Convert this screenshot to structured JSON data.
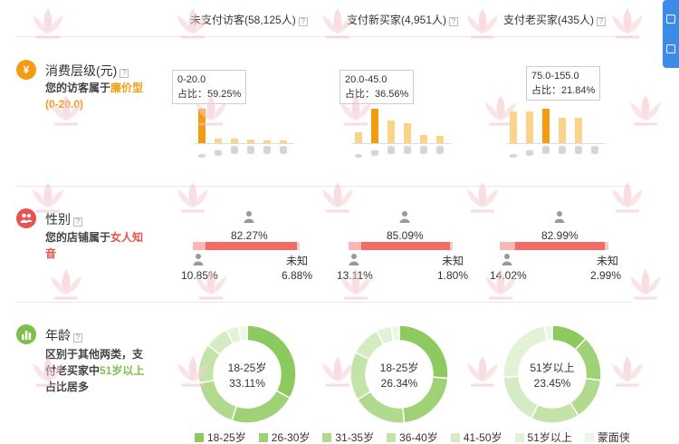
{
  "columns": [
    {
      "label": "未支付访客(58,125人)"
    },
    {
      "label": "支付新买家(4,951人)"
    },
    {
      "label": "支付老买家(435人)"
    }
  ],
  "help_mark": "?",
  "price": {
    "icon": "¥",
    "title": "消费层级(元)",
    "desc_prefix": "您的访客属于",
    "desc_highlight": "廉价型",
    "desc_range": "(0-20.0)",
    "tips": [
      {
        "range": "0-20.0",
        "share": "占比：59.25%"
      },
      {
        "range": "20.0-45.0",
        "share": "占比：36.56%"
      },
      {
        "range": "75.0-155.0",
        "share": "占比：21.84%"
      }
    ],
    "chart_data": {
      "type": "bar",
      "note": "relative level per price tier (highlighted tier = dominant)",
      "series": [
        {
          "values": [
            59,
            8,
            8,
            6,
            4,
            3
          ],
          "highlight": 0
        },
        {
          "values": [
            12,
            37,
            24,
            21,
            9,
            8
          ],
          "highlight": 1
        },
        {
          "values": [
            28,
            28,
            30,
            22,
            22,
            0
          ],
          "highlight": 2
        }
      ]
    }
  },
  "gender": {
    "title": "性别",
    "desc_prefix": "您的店铺属于",
    "desc_highlight": "女人知音",
    "columns": [
      {
        "female": "82.27%",
        "male": "10.85%",
        "unknown_label": "未知",
        "unknown": "6.88%",
        "female_v": 82.27,
        "male_v": 10.85,
        "unknown_v": 6.88
      },
      {
        "female": "85.09%",
        "male": "13.11%",
        "unknown_label": "未知",
        "unknown": "1.80%",
        "female_v": 85.09,
        "male_v": 13.11,
        "unknown_v": 1.8
      },
      {
        "female": "82.99%",
        "male": "14.02%",
        "unknown_label": "未知",
        "unknown": "2.99%",
        "female_v": 82.99,
        "male_v": 14.02,
        "unknown_v": 2.99
      }
    ]
  },
  "age": {
    "title": "年龄",
    "desc_prefix": "区别于其他两类，支付老买家中",
    "desc_highlight": "51岁以上",
    "desc_suffix": "占比居多",
    "donuts": [
      {
        "label": "18-25岁",
        "value": "33.11%",
        "slices": [
          33.11,
          22,
          17,
          13,
          8,
          4,
          2.89
        ]
      },
      {
        "label": "18-25岁",
        "value": "26.34%",
        "slices": [
          26.34,
          22,
          18,
          16,
          10,
          5,
          2.66
        ]
      },
      {
        "label": "51岁以上",
        "value": "23.45%",
        "slices": [
          12,
          15,
          14,
          16,
          17,
          23.45,
          2.55
        ]
      }
    ],
    "legend": [
      {
        "label": "18-25岁",
        "color": "#8cc95e"
      },
      {
        "label": "26-30岁",
        "color": "#9fd277"
      },
      {
        "label": "31-35岁",
        "color": "#b1da8f"
      },
      {
        "label": "36-40岁",
        "color": "#c4e3a9"
      },
      {
        "label": "41-50岁",
        "color": "#d5ebc3"
      },
      {
        "label": "51岁以上",
        "color": "#e3f1d6"
      },
      {
        "label": "蒙面侠",
        "color": "#eef6e8"
      }
    ]
  },
  "colors": {
    "accent_orange": "#f39c12",
    "accent_red": "#e8534f",
    "accent_green": "#7cc04b",
    "side_tab": "#3c8ce7"
  }
}
